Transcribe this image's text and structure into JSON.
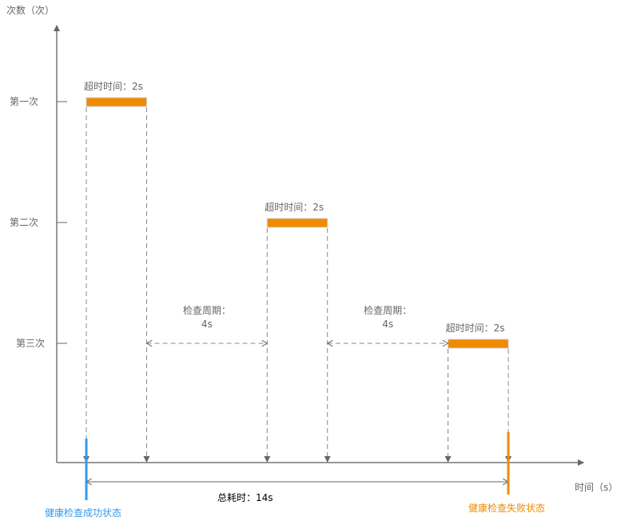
{
  "axes": {
    "y_label": "次数（次）",
    "x_label": "时间（s）",
    "y_ticks": [
      "第一次",
      "第二次",
      "第三次"
    ]
  },
  "attempts": [
    {
      "label": "超时时间：2s",
      "start_s": 0,
      "timeout_s": 2
    },
    {
      "label": "超时时间：2s",
      "start_s": 6,
      "timeout_s": 2
    },
    {
      "label": "超时时间：2s",
      "start_s": 12,
      "timeout_s": 2
    }
  ],
  "intervals": [
    {
      "line1": "检查周期：",
      "line2": "4s"
    },
    {
      "line1": "检查周期：",
      "line2": "4s"
    }
  ],
  "total": {
    "label": "总耗时：14s",
    "value_s": 14
  },
  "states": {
    "success": {
      "label": "健康检查成功状态",
      "color": "#3399ee"
    },
    "failure": {
      "label": "健康检查失败状态",
      "color": "#f08a00"
    }
  },
  "colors": {
    "bar": "#f08a00",
    "axis": "#666666",
    "dash": "#888888"
  }
}
